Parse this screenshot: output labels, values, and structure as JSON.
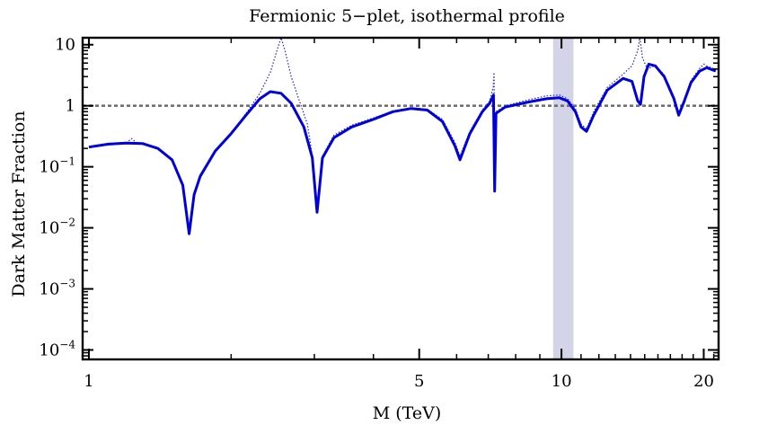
{
  "chart_data": {
    "type": "line",
    "title": "Fermionic 5−plet, isothermal profile",
    "xlabel": "M (TeV)",
    "ylabel": "Dark Matter Fraction",
    "xscale": "log",
    "yscale": "log",
    "xlim": [
      0.97,
      21.5
    ],
    "ylim": [
      7e-05,
      13
    ],
    "x_ticks": [
      {
        "value": 1,
        "label": "1"
      },
      {
        "value": 5,
        "label": "5"
      },
      {
        "value": 10,
        "label": "10"
      },
      {
        "value": 20,
        "label": "20"
      }
    ],
    "y_ticks": [
      {
        "value": 10,
        "base": "10",
        "exp": ""
      },
      {
        "value": 1,
        "base": "1",
        "exp": ""
      },
      {
        "value": 0.1,
        "base": "10",
        "exp": "−1"
      },
      {
        "value": 0.01,
        "base": "10",
        "exp": "−2"
      },
      {
        "value": 0.001,
        "base": "10",
        "exp": "−3"
      },
      {
        "value": 0.0001,
        "base": "10",
        "exp": "−4"
      }
    ],
    "reference_line": {
      "y": 1,
      "style": "dashed",
      "color": "#707070"
    },
    "shaded_band": {
      "x_range": [
        9.6,
        10.6
      ],
      "color": "#d4d4e8"
    },
    "series": [
      {
        "name": "solid",
        "style": "solid",
        "color": "#0000dd",
        "points": [
          [
            1.0,
            0.21
          ],
          [
            1.1,
            0.235
          ],
          [
            1.2,
            0.245
          ],
          [
            1.3,
            0.24
          ],
          [
            1.4,
            0.2
          ],
          [
            1.5,
            0.13
          ],
          [
            1.58,
            0.05
          ],
          [
            1.63,
            0.008
          ],
          [
            1.67,
            0.035
          ],
          [
            1.72,
            0.07
          ],
          [
            1.85,
            0.18
          ],
          [
            2.0,
            0.35
          ],
          [
            2.15,
            0.7
          ],
          [
            2.3,
            1.3
          ],
          [
            2.42,
            1.7
          ],
          [
            2.55,
            1.6
          ],
          [
            2.68,
            1.1
          ],
          [
            2.85,
            0.45
          ],
          [
            2.97,
            0.14
          ],
          [
            3.04,
            0.018
          ],
          [
            3.12,
            0.14
          ],
          [
            3.3,
            0.3
          ],
          [
            3.6,
            0.45
          ],
          [
            4.0,
            0.6
          ],
          [
            4.4,
            0.8
          ],
          [
            4.8,
            0.9
          ],
          [
            5.2,
            0.85
          ],
          [
            5.6,
            0.55
          ],
          [
            5.95,
            0.22
          ],
          [
            6.1,
            0.13
          ],
          [
            6.4,
            0.35
          ],
          [
            6.8,
            0.8
          ],
          [
            7.05,
            1.1
          ],
          [
            7.18,
            1.5
          ],
          [
            7.22,
            0.04
          ],
          [
            7.27,
            0.75
          ],
          [
            7.6,
            0.95
          ],
          [
            8.5,
            1.15
          ],
          [
            9.3,
            1.3
          ],
          [
            9.9,
            1.35
          ],
          [
            10.3,
            1.2
          ],
          [
            10.7,
            0.8
          ],
          [
            11.0,
            0.45
          ],
          [
            11.3,
            0.38
          ],
          [
            11.7,
            0.7
          ],
          [
            12.5,
            1.8
          ],
          [
            13.5,
            2.8
          ],
          [
            14.1,
            2.5
          ],
          [
            14.5,
            1.2
          ],
          [
            14.7,
            1.05
          ],
          [
            14.95,
            3.0
          ],
          [
            15.3,
            4.8
          ],
          [
            15.8,
            4.5
          ],
          [
            16.5,
            3.0
          ],
          [
            17.3,
            1.3
          ],
          [
            17.7,
            0.7
          ],
          [
            18.2,
            1.2
          ],
          [
            18.8,
            2.4
          ],
          [
            19.6,
            3.7
          ],
          [
            20.3,
            4.2
          ],
          [
            21.2,
            3.7
          ]
        ]
      },
      {
        "name": "dotted",
        "style": "dotted",
        "color": "#2222dd",
        "points": [
          [
            1.0,
            0.21
          ],
          [
            1.2,
            0.245
          ],
          [
            1.23,
            0.29
          ],
          [
            1.26,
            0.25
          ],
          [
            1.4,
            0.2
          ],
          [
            1.5,
            0.13
          ],
          [
            1.58,
            0.05
          ],
          [
            1.63,
            0.008
          ],
          [
            1.67,
            0.035
          ],
          [
            1.72,
            0.07
          ],
          [
            1.85,
            0.18
          ],
          [
            2.0,
            0.35
          ],
          [
            2.15,
            0.75
          ],
          [
            2.3,
            1.6
          ],
          [
            2.42,
            3.5
          ],
          [
            2.5,
            8.0
          ],
          [
            2.55,
            13.0
          ],
          [
            2.6,
            8.0
          ],
          [
            2.68,
            3.0
          ],
          [
            2.8,
            1.1
          ],
          [
            2.9,
            0.5
          ],
          [
            2.97,
            0.15
          ],
          [
            3.04,
            0.02
          ],
          [
            3.12,
            0.15
          ],
          [
            3.3,
            0.33
          ],
          [
            3.6,
            0.48
          ],
          [
            4.0,
            0.63
          ],
          [
            4.4,
            0.82
          ],
          [
            4.8,
            0.92
          ],
          [
            5.2,
            0.88
          ],
          [
            5.6,
            0.6
          ],
          [
            5.95,
            0.25
          ],
          [
            6.1,
            0.15
          ],
          [
            6.4,
            0.38
          ],
          [
            6.8,
            0.85
          ],
          [
            7.05,
            1.2
          ],
          [
            7.17,
            2.0
          ],
          [
            7.2,
            3.5
          ],
          [
            7.22,
            0.05
          ],
          [
            7.27,
            0.8
          ],
          [
            7.6,
            1.0
          ],
          [
            8.5,
            1.25
          ],
          [
            9.3,
            1.45
          ],
          [
            9.9,
            1.5
          ],
          [
            10.3,
            1.3
          ],
          [
            10.7,
            0.9
          ],
          [
            11.0,
            0.5
          ],
          [
            11.3,
            0.42
          ],
          [
            11.7,
            0.8
          ],
          [
            12.5,
            2.0
          ],
          [
            13.5,
            3.3
          ],
          [
            14.1,
            4.5
          ],
          [
            14.5,
            8.0
          ],
          [
            14.65,
            14.0
          ],
          [
            14.85,
            6.0
          ],
          [
            15.2,
            4.0
          ],
          [
            15.8,
            4.6
          ],
          [
            16.5,
            3.2
          ],
          [
            17.3,
            1.4
          ],
          [
            17.7,
            0.75
          ],
          [
            18.2,
            1.3
          ],
          [
            18.8,
            2.6
          ],
          [
            19.6,
            4.1
          ],
          [
            20.0,
            4.8
          ],
          [
            20.3,
            4.5
          ],
          [
            21.2,
            3.9
          ]
        ]
      }
    ]
  }
}
